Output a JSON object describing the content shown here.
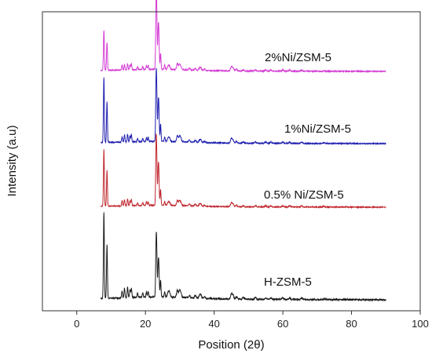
{
  "chart_data": {
    "type": "line",
    "title": "",
    "xlabel": "Position (2θ)",
    "ylabel": "Intensity (a.u)",
    "xlim": [
      -10,
      100
    ],
    "xticks": [
      0,
      20,
      40,
      60,
      80,
      100
    ],
    "xtick_labels": [
      "0",
      "20",
      "40",
      "60",
      "80",
      "100"
    ],
    "yticks_shown": false,
    "grid": false,
    "legend": "none (series labels annotated above each trace)",
    "x_range_of_data": [
      7,
      90
    ],
    "peaks_2theta": [
      7.9,
      8.8,
      13.2,
      13.9,
      14.8,
      15.5,
      15.9,
      17.7,
      19.2,
      20.3,
      20.8,
      23.1,
      23.3,
      23.7,
      23.9,
      24.4,
      25.6,
      26.6,
      27.0,
      29.3,
      29.9,
      30.3,
      32.8,
      34.5,
      35.7,
      36.1,
      37.2,
      45.0,
      45.5,
      46.5,
      48.5,
      52.0,
      55.0,
      56.5,
      60.0,
      62.0,
      65.5,
      72.0
    ],
    "series": [
      {
        "name": "H-ZSM-5",
        "color": "#1a1a1a",
        "peak_intensities": [
          100,
          62,
          8,
          11,
          12,
          9,
          11,
          5,
          5,
          6,
          6,
          58,
          42,
          30,
          32,
          20,
          6,
          5,
          5,
          8,
          7,
          5,
          3,
          3,
          3,
          4,
          2,
          6,
          5,
          3,
          2,
          2,
          2,
          2,
          2,
          2,
          2,
          1
        ]
      },
      {
        "name": "0.5% Ni/ZSM-5",
        "color": "#c0262d",
        "peak_intensities": [
          100,
          63,
          9,
          11,
          12,
          9,
          11,
          5,
          5,
          6,
          6,
          100,
          66,
          54,
          49,
          28,
          7,
          5,
          5,
          9,
          8,
          5,
          3,
          3,
          3,
          4,
          2,
          7,
          5,
          3,
          2,
          2,
          2,
          2,
          2,
          2,
          2,
          1
        ]
      },
      {
        "name": "1%Ni/ZSM-5",
        "color": "#1f1fb0",
        "peak_intensities": [
          100,
          62,
          8,
          11,
          12,
          9,
          11,
          5,
          5,
          6,
          6,
          88,
          60,
          46,
          45,
          26,
          7,
          5,
          5,
          9,
          8,
          5,
          3,
          3,
          3,
          4,
          2,
          7,
          5,
          3,
          2,
          2,
          2,
          2,
          2,
          2,
          2,
          1
        ]
      },
      {
        "name": "2%Ni/ZSM-5",
        "color": "#d43ad4",
        "peak_intensities": [
          66,
          46,
          8,
          9,
          10,
          8,
          10,
          5,
          5,
          6,
          6,
          100,
          72,
          54,
          50,
          26,
          7,
          5,
          5,
          10,
          8,
          5,
          3,
          3,
          3,
          4,
          2,
          7,
          5,
          3,
          2,
          2,
          2,
          2,
          2,
          2,
          2,
          1
        ]
      }
    ]
  }
}
